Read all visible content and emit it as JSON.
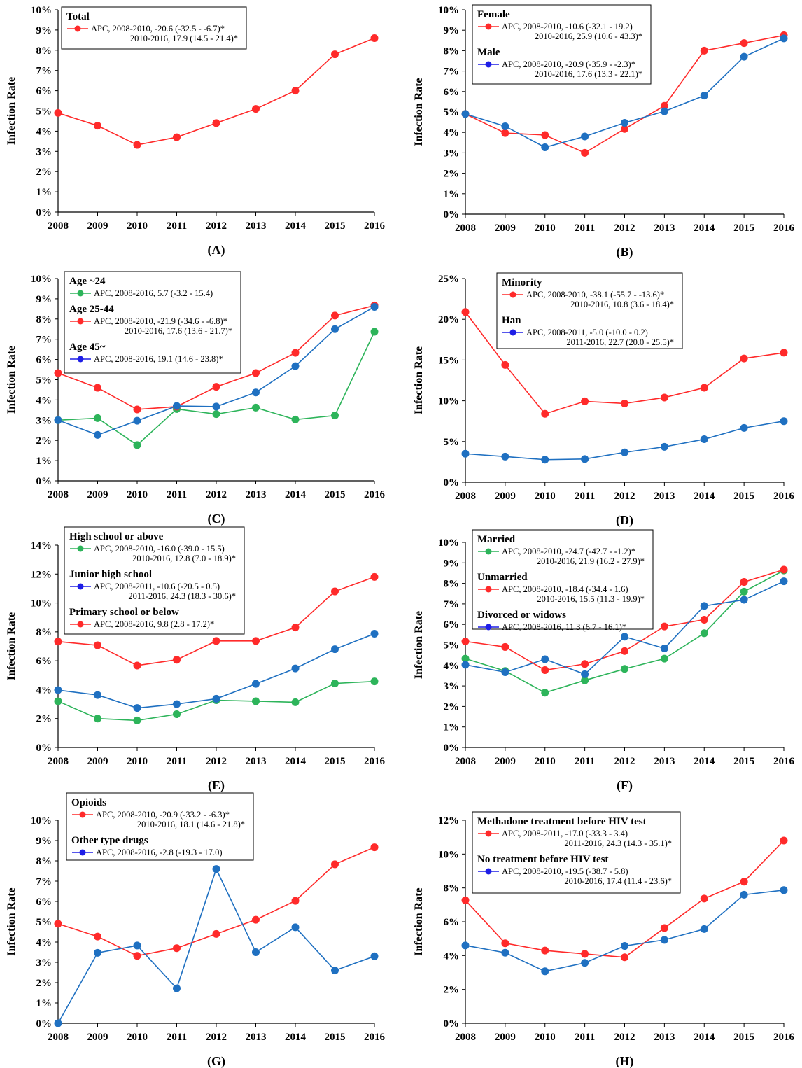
{
  "colors": {
    "red": "#FF2A2A",
    "blue": "#1F70C1",
    "green": "#2DB45A",
    "legend_blue": "#1E1EE6"
  },
  "chart_data": [
    {
      "id": "A",
      "panel_label": "(A)",
      "type": "line",
      "x": [
        2008,
        2009,
        2010,
        2011,
        2012,
        2013,
        2014,
        2015,
        2016
      ],
      "ylabel": "Infection Rate",
      "ylim": [
        0,
        10
      ],
      "yticks": [
        0,
        1,
        2,
        3,
        4,
        5,
        6,
        7,
        8,
        9,
        10
      ],
      "ysuffix": "%",
      "series": [
        {
          "name": "Total",
          "color": "red",
          "values": [
            4.9,
            4.27,
            3.32,
            3.7,
            4.4,
            5.1,
            6.0,
            7.8,
            8.6
          ],
          "apc": [
            "APC, 2008-2010, -20.6 (-32.5 - -6.7)*",
            "2010-2016, 17.9 (14.5 - 21.4)*"
          ]
        }
      ]
    },
    {
      "id": "B",
      "panel_label": "(B)",
      "type": "line",
      "x": [
        2008,
        2009,
        2010,
        2011,
        2012,
        2013,
        2014,
        2015,
        2016
      ],
      "ylabel": "Infection Rate",
      "ylim": [
        0,
        10
      ],
      "yticks": [
        0,
        1,
        2,
        3,
        4,
        5,
        6,
        7,
        8,
        9,
        10
      ],
      "ysuffix": "%",
      "series": [
        {
          "name": "Female",
          "color": "red",
          "values": [
            4.9,
            3.97,
            3.87,
            3.0,
            4.17,
            5.3,
            8.0,
            8.37,
            8.75
          ],
          "apc": [
            "APC, 2008-2010, -10.6 (-32.1 - 19.2)",
            "2010-2016, 25.9 (10.6 - 43.3)*"
          ]
        },
        {
          "name": "Male",
          "color": "blue",
          "values": [
            4.9,
            4.3,
            3.27,
            3.8,
            4.47,
            5.03,
            5.8,
            7.7,
            8.6
          ],
          "apc": [
            "APC, 2008-2010, -20.9 (-35.9 - -2.3)*",
            "2010-2016, 17.6 (13.3 - 22.1)*"
          ]
        }
      ]
    },
    {
      "id": "C",
      "panel_label": "(C)",
      "type": "line",
      "x": [
        2008,
        2009,
        2010,
        2011,
        2012,
        2013,
        2014,
        2015,
        2016
      ],
      "ylabel": "Infection Rate",
      "ylim": [
        0,
        10
      ],
      "yticks": [
        0,
        1,
        2,
        3,
        4,
        5,
        6,
        7,
        8,
        9,
        10
      ],
      "ysuffix": "%",
      "series": [
        {
          "name": "Age ~24",
          "color": "green",
          "values": [
            3.0,
            3.1,
            1.77,
            3.55,
            3.3,
            3.62,
            3.03,
            3.23,
            7.37
          ],
          "apc": [
            "APC, 2008-2016, 5.7 (-3.2 - 15.4)"
          ]
        },
        {
          "name": "Age 25-44",
          "color": "red",
          "values": [
            5.33,
            4.6,
            3.53,
            3.67,
            4.65,
            5.33,
            6.33,
            8.17,
            8.67
          ],
          "apc": [
            "APC, 2008-2010, -21.9 (-34.6 - -6.8)*",
            "2010-2016, 17.6 (13.6 - 21.7)*"
          ]
        },
        {
          "name": "Age 45~",
          "color": "blue",
          "values": [
            3.0,
            2.27,
            2.97,
            3.7,
            3.67,
            4.37,
            5.67,
            7.5,
            8.6
          ],
          "apc": [
            "APC, 2008-2016, 19.1 (14.6 - 23.8)*"
          ]
        }
      ]
    },
    {
      "id": "D",
      "panel_label": "(D)",
      "type": "line",
      "x": [
        2008,
        2009,
        2010,
        2011,
        2012,
        2013,
        2014,
        2015,
        2016
      ],
      "ylabel": "Infection Rate",
      "ylim": [
        0,
        25
      ],
      "yticks": [
        0,
        5,
        10,
        15,
        20,
        25
      ],
      "ysuffix": "%",
      "series": [
        {
          "name": "Minority",
          "color": "red",
          "values": [
            20.9,
            14.4,
            8.4,
            9.93,
            9.67,
            10.4,
            11.6,
            15.2,
            15.9
          ],
          "apc": [
            "APC, 2008-2010, -38.1 (-55.7 - -13.6)*",
            "2010-2016, 10.8 (3.6 - 18.4)*"
          ]
        },
        {
          "name": "Han",
          "color": "blue",
          "values": [
            3.5,
            3.15,
            2.77,
            2.85,
            3.67,
            4.35,
            5.28,
            6.67,
            7.5
          ],
          "apc": [
            "APC, 2008-2011, -5.0 (-10.0 - 0.2)",
            "2011-2016, 22.7 (20.0 - 25.5)*"
          ]
        }
      ]
    },
    {
      "id": "E",
      "panel_label": "(E)",
      "type": "line",
      "x": [
        2008,
        2009,
        2010,
        2011,
        2012,
        2013,
        2014,
        2015,
        2016
      ],
      "ylabel": "Infection Rate",
      "ylim": [
        0,
        14
      ],
      "yticks": [
        0,
        2,
        4,
        6,
        8,
        10,
        12,
        14
      ],
      "ysuffix": "%",
      "series": [
        {
          "name": "High school or above",
          "color": "green",
          "values": [
            3.2,
            2.0,
            1.87,
            2.3,
            3.27,
            3.2,
            3.13,
            4.43,
            4.57
          ],
          "apc": [
            "APC, 2008-2010, -16.0 (-39.0 - 15.5)",
            "2010-2016, 12.8 (7.0 - 18.9)*"
          ]
        },
        {
          "name": "Junior high school",
          "color": "blue",
          "values": [
            3.97,
            3.63,
            2.73,
            3.0,
            3.37,
            4.4,
            5.47,
            6.8,
            7.87
          ],
          "apc": [
            "APC, 2008-2011, -10.6 (-20.5 - 0.5)",
            "2011-2016, 24.3 (18.3 - 30.6)*"
          ]
        },
        {
          "name": "Primary school or below",
          "color": "red",
          "values": [
            7.33,
            7.07,
            5.67,
            6.07,
            7.37,
            7.37,
            8.3,
            10.8,
            11.8
          ],
          "apc": [
            "APC, 2008-2016, 9.8 (2.8 - 17.2)*"
          ]
        }
      ]
    },
    {
      "id": "F",
      "panel_label": "(F)",
      "type": "line",
      "x": [
        2008,
        2009,
        2010,
        2011,
        2012,
        2013,
        2014,
        2015,
        2016
      ],
      "ylabel": "Infection Rate",
      "ylim": [
        0,
        10
      ],
      "yticks": [
        0,
        1,
        2,
        3,
        4,
        5,
        6,
        7,
        8,
        9,
        10
      ],
      "ysuffix": "%",
      "series": [
        {
          "name": "Married",
          "color": "green",
          "values": [
            4.33,
            3.73,
            2.67,
            3.27,
            3.83,
            4.33,
            5.57,
            7.6,
            8.63
          ],
          "apc": [
            "APC, 2008-2010, -24.7 (-42.7 - -1.2)*",
            "2010-2016, 21.9 (16.2 - 27.9)*"
          ]
        },
        {
          "name": "Unmarried",
          "color": "red",
          "values": [
            5.17,
            4.9,
            3.77,
            4.07,
            4.7,
            5.9,
            6.23,
            8.07,
            8.67
          ],
          "apc": [
            "APC, 2008-2010, -18.4 (-34.4 - 1.6)",
            "2010-2016, 15.5 (11.3 - 19.9)*"
          ]
        },
        {
          "name": "Divorced or widows",
          "color": "blue",
          "values": [
            4.03,
            3.67,
            4.3,
            3.57,
            5.4,
            4.83,
            6.9,
            7.2,
            8.1
          ],
          "apc": [
            "APC, 2008-2016, 11.3 (6.7 - 16.1)*"
          ]
        }
      ]
    },
    {
      "id": "G",
      "panel_label": "(G)",
      "type": "line",
      "x": [
        2008,
        2009,
        2010,
        2011,
        2012,
        2013,
        2014,
        2015,
        2016
      ],
      "ylabel": "Infection Rate",
      "ylim": [
        0,
        10
      ],
      "yticks": [
        0,
        1,
        2,
        3,
        4,
        5,
        6,
        7,
        8,
        9,
        10
      ],
      "ysuffix": "%",
      "series": [
        {
          "name": "Opioids",
          "color": "red",
          "values": [
            4.9,
            4.27,
            3.32,
            3.7,
            4.4,
            5.1,
            6.03,
            7.83,
            8.67
          ],
          "apc": [
            "APC, 2008-2010, -20.9 (-33.2 - -6.3)*",
            "2010-2016, 18.1 (14.6 - 21.8)*"
          ]
        },
        {
          "name": "Other type drugs",
          "color": "blue",
          "values": [
            0.0,
            3.47,
            3.83,
            1.72,
            7.6,
            3.5,
            4.73,
            2.6,
            3.3
          ],
          "apc": [
            "APC, 2008-2016, -2.8 (-19.3 - 17.0)"
          ]
        }
      ]
    },
    {
      "id": "H",
      "panel_label": "(H)",
      "type": "line",
      "x": [
        2008,
        2009,
        2010,
        2011,
        2012,
        2013,
        2014,
        2015,
        2016
      ],
      "ylabel": "Infection Rate",
      "ylim": [
        0,
        12
      ],
      "yticks": [
        0,
        2,
        4,
        6,
        8,
        10,
        12
      ],
      "ysuffix": "%",
      "series": [
        {
          "name": "Methadone treatment before HIV test",
          "color": "red",
          "values": [
            7.27,
            4.73,
            4.3,
            4.1,
            3.9,
            5.63,
            7.37,
            8.37,
            10.8
          ],
          "apc": [
            "APC, 2008-2011, -17.0 (-33.3 - 3.4)",
            "2011-2016, 24.3 (14.3 - 35.1)*"
          ]
        },
        {
          "name": "No treatment before HIV test",
          "color": "blue",
          "values": [
            4.6,
            4.17,
            3.07,
            3.57,
            4.57,
            4.93,
            5.57,
            7.6,
            7.87
          ],
          "apc": [
            "APC, 2008-2010, -19.5 (-38.7 - 5.8)",
            "2010-2016, 17.4 (11.4 - 23.6)*"
          ]
        }
      ]
    }
  ]
}
